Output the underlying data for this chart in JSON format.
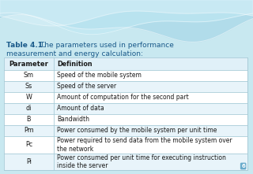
{
  "title_bold": "Table 4.1.",
  "title_rest": " The parameters used in performance\nmeasurement and energy calculation:",
  "header": [
    "Parameter",
    "Definition"
  ],
  "rows": [
    [
      "Sm",
      "Speed of the mobile system"
    ],
    [
      "Ss",
      "Speed of the server"
    ],
    [
      "W",
      "Amount of computation for the second part"
    ],
    [
      "di",
      "Amount of data"
    ],
    [
      "B",
      "Bandwidth"
    ],
    [
      "Pm",
      "Power consumed by the mobile system per unit time"
    ],
    [
      "Pc",
      "Power required to send data from the mobile system over\nthe network"
    ],
    [
      "Pi",
      "Power consumed per unit time for executing instruction\ninside the server"
    ]
  ],
  "bg_color": "#c8e8f0",
  "table_bg": "#f0f8fc",
  "header_bg": "#e0f0f8",
  "row_bg_odd": "#ffffff",
  "row_bg_even": "#e8f4fa",
  "border_color": "#a8ccd8",
  "text_color": "#1a1a1a",
  "title_color": "#1a5a8a",
  "wave_color1": "#9dd8e8",
  "wave_color2": "#b8e4f0",
  "page_num": "6",
  "page_num_bg": "#6aaccc"
}
